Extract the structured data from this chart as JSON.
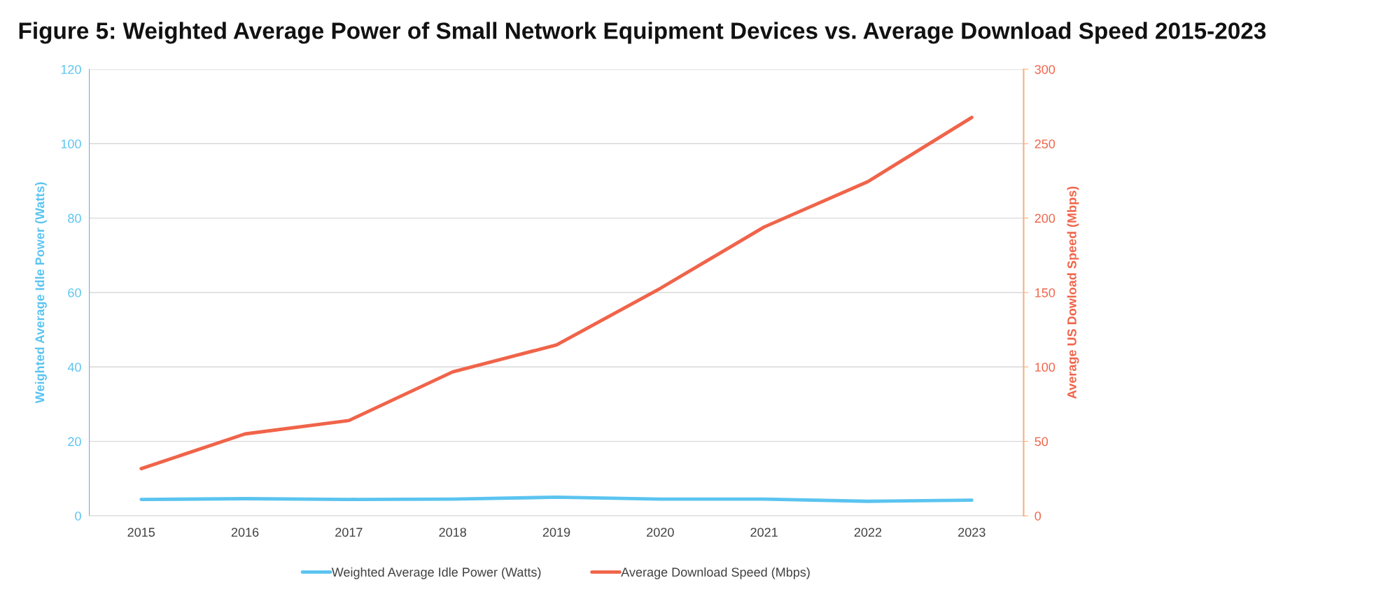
{
  "chart_data": {
    "type": "line",
    "title": "Figure 5: Weighted Average Power of Small Network Equipment Devices vs. Average Download Speed 2015-2023",
    "categories": [
      "2015",
      "2016",
      "2017",
      "2018",
      "2019",
      "2020",
      "2021",
      "2022",
      "2023"
    ],
    "ylabel": "Weighted Average Idle Power (Watts)",
    "y2label": "Average US Dowload Speed (Mbps)",
    "ylim": [
      0,
      120
    ],
    "yticks": [
      0,
      20,
      40,
      60,
      80,
      100,
      120
    ],
    "y2lim": [
      0,
      300
    ],
    "y2ticks": [
      0,
      50,
      100,
      150,
      200,
      250,
      300
    ],
    "grid": "y",
    "legend": "bottom",
    "marker": "none",
    "line_style": "solid",
    "series": [
      {
        "name": "Weighted Average Idle Power (Watts)",
        "color": "#5bc4f0",
        "values": [
          4.4,
          4.6,
          4.4,
          4.5,
          5.0,
          4.5,
          4.5,
          3.9,
          4.2
        ]
      },
      {
        "name": "Average Download Speed (Mbps)",
        "color": "#f0644a",
        "axis": "y2",
        "values": [
          31.7,
          55,
          64,
          96.7,
          114.8,
          152.8,
          194,
          224.5,
          267.6
        ]
      }
    ]
  }
}
